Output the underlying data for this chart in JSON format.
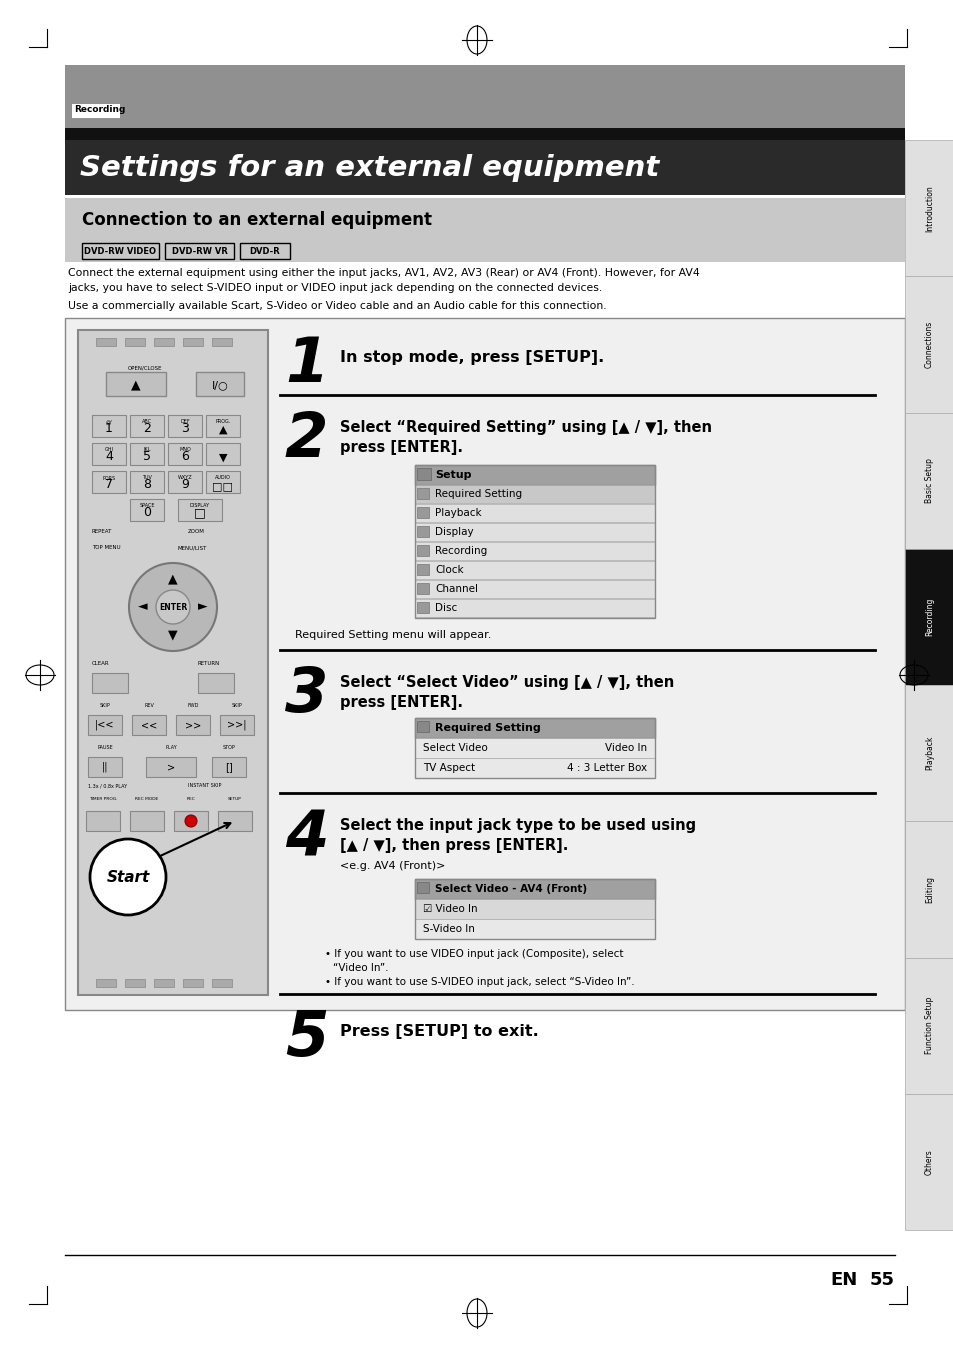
{
  "page_bg": "#ffffff",
  "header_gray_bg": "#919191",
  "title_bg": "#2a2a2a",
  "title_text": "Settings for an external equipment",
  "recording_label": "Recording",
  "section_bg": "#c8c8c8",
  "section_title": "Connection to an external equipment",
  "dvd_labels": [
    "DVD-RW VIDEO",
    "DVD-RW VR",
    "DVD-R"
  ],
  "body_text1": "Connect the external equipment using either the input jacks, AV1, AV2, AV3 (Rear) or AV4 (Front). However, for AV4",
  "body_text2": "jacks, you have to select S-VIDEO input or VIDEO input jack depending on the connected devices.",
  "body_text3": "Use a commercially available Scart, S-Video or Video cable and an Audio cable for this connection.",
  "step1_text": "In stop mode, press [SETUP].",
  "step2_text1": "Select “Required Setting” using [▲ / ▼], then",
  "step2_text2": "press [ENTER].",
  "step2_menu": [
    "Setup",
    "Required Setting",
    "Playback",
    "Display",
    "Recording",
    "Clock",
    "Channel",
    "Disc"
  ],
  "step2_note": "Required Setting menu will appear.",
  "step3_text1": "Select “Select Video” using [▲ / ▼], then",
  "step3_text2": "press [ENTER].",
  "step3_menu_title": "Required Setting",
  "step3_rows": [
    [
      "Select Video",
      "Video In"
    ],
    [
      "TV Aspect",
      "4 : 3 Letter Box"
    ]
  ],
  "step4_text1": "Select the input jack type to be used using",
  "step4_text2": "[▲ / ▼], then press [ENTER].",
  "step4_eg": "<e.g. AV4 (Front)>",
  "step4_menu_title": "Select Video - AV4 (Front)",
  "step4_options": [
    "☑ Video In",
    "S-Video In"
  ],
  "step4_bullet1": "If you want to use VIDEO input jack (Composite), select",
  "step4_bullet1b": "“Video In”.",
  "step4_bullet2": "If you want to use S-VIDEO input jack, select “S-Video In”.",
  "step5_text": "Press [SETUP] to exit.",
  "sidebar_items": [
    "Introduction",
    "Connections",
    "Basic Setup",
    "Recording",
    "Playback",
    "Editing",
    "Function Setup",
    "Others"
  ],
  "recording_sidebar_active": "Recording",
  "page_num": "55",
  "en_label": "EN"
}
